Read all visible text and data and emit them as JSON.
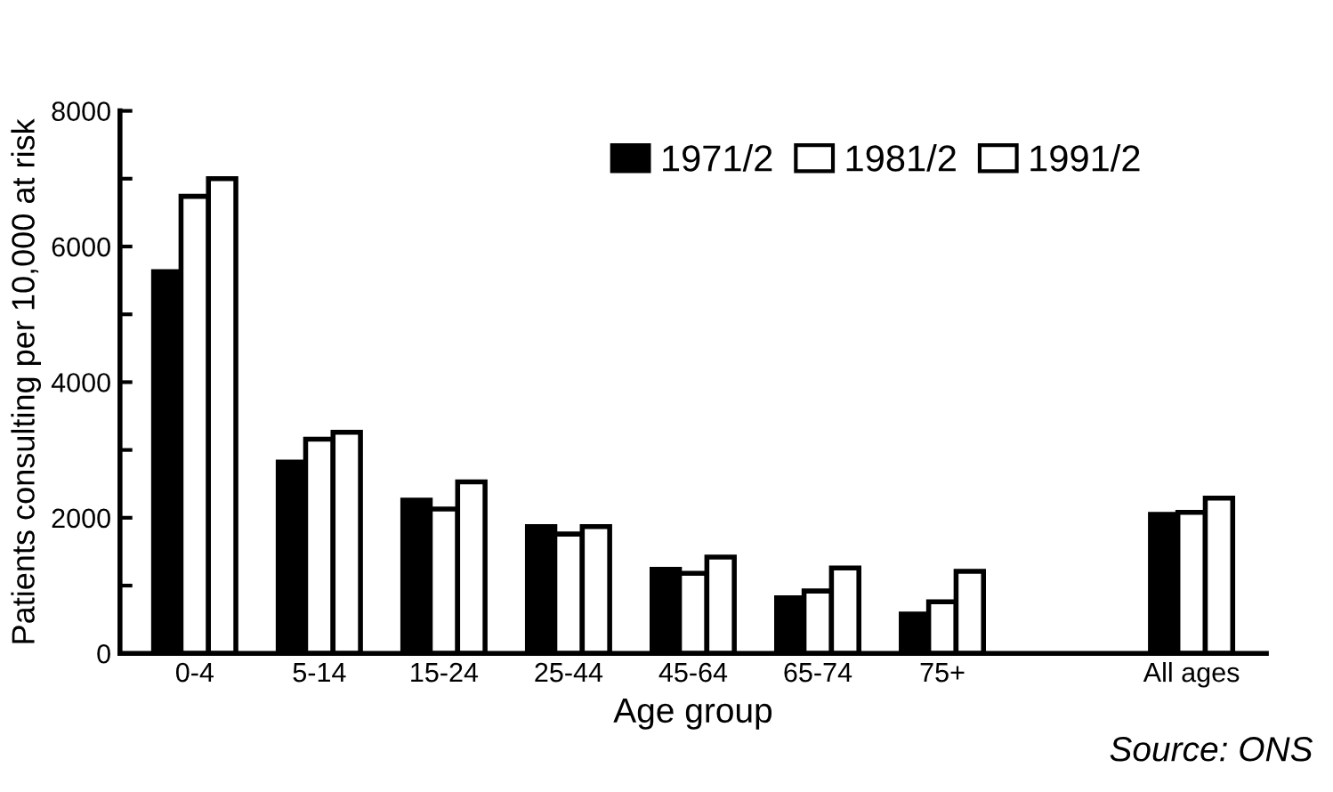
{
  "chart_data": {
    "type": "bar",
    "xlabel": "Age group",
    "ylabel": "Patients consulting per 10,000 at risk",
    "categories": [
      "0-4",
      "5-14",
      "15-24",
      "25-44",
      "45-64",
      "65-74",
      "75+",
      null,
      "All ages"
    ],
    "series": [
      {
        "name": "1971/2",
        "color": "#000000",
        "values": [
          5630,
          2820,
          2260,
          1870,
          1240,
          820,
          580,
          null,
          2050
        ]
      },
      {
        "name": "1981/2",
        "color": "#ffffff",
        "values": [
          6740,
          3160,
          2130,
          1760,
          1180,
          920,
          760,
          null,
          2080
        ]
      },
      {
        "name": "1991/2",
        "color": "#ffffff",
        "values": [
          7000,
          3260,
          2530,
          1870,
          1420,
          1260,
          1210,
          null,
          2290
        ]
      }
    ],
    "ylim": [
      0,
      8000
    ],
    "yticks": [
      0,
      {
        "value": 1000,
        "label": null
      },
      2000,
      {
        "value": 3000,
        "label": null
      },
      4000,
      {
        "value": 5000,
        "label": null
      },
      6000,
      {
        "value": 7000,
        "label": null
      },
      8000
    ],
    "legend": "top right",
    "grid": false,
    "annotations": [
      "Source: ONS"
    ]
  }
}
